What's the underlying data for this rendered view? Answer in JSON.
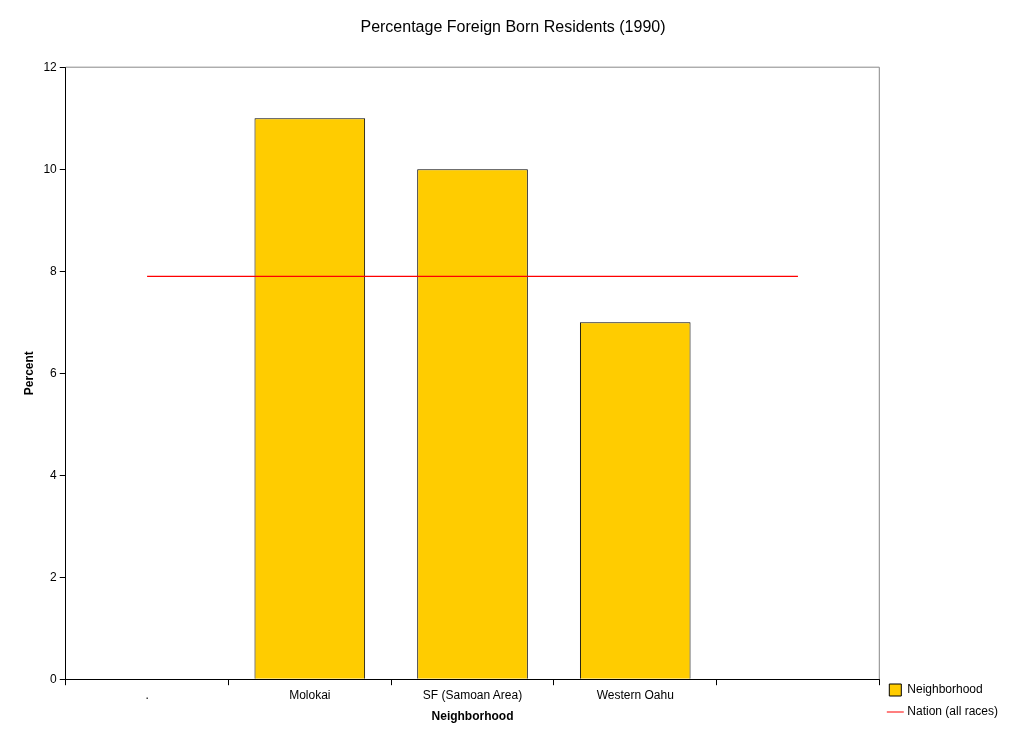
{
  "chart_data": {
    "type": "bar",
    "title": "Percentage Foreign Born Residents (1990)",
    "xlabel": "Neighborhood",
    "ylabel": "Percent",
    "categories": [
      ".",
      "Molokai",
      "SF (Samoan Area)",
      "Western Oahu",
      null
    ],
    "series": [
      {
        "name": "Neighborhood",
        "color": "#ffcc00",
        "values": [
          null,
          11,
          10,
          7,
          null
        ]
      },
      {
        "name": "Nation (all races)",
        "type": "line",
        "color": "#ff0000",
        "values": [
          7.9,
          7.9,
          7.9,
          7.9,
          7.9
        ]
      }
    ],
    "ylim": [
      0,
      12
    ],
    "yticks": [
      0,
      2,
      4,
      6,
      8,
      10,
      12
    ],
    "grid": false,
    "legend": "bottom right"
  }
}
